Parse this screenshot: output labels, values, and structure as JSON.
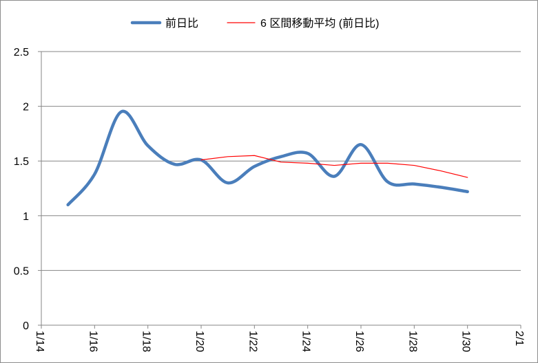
{
  "chart_data": {
    "type": "line",
    "title": "",
    "xlabel": "",
    "ylabel": "",
    "ylim": [
      0,
      2.5
    ],
    "yticks": [
      "0",
      "0.5",
      "1",
      "1.5",
      "2",
      "2.5"
    ],
    "xticks": [
      "1/14",
      "1/16",
      "1/18",
      "1/20",
      "1/22",
      "1/24",
      "1/26",
      "1/28",
      "1/30",
      "2/1"
    ],
    "grid": true,
    "legend_position": "top",
    "x": [
      "1/15",
      "1/16",
      "1/17",
      "1/18",
      "1/19",
      "1/20",
      "1/21",
      "1/22",
      "1/23",
      "1/24",
      "1/25",
      "1/26",
      "1/27",
      "1/28",
      "1/29",
      "1/30"
    ],
    "series": [
      {
        "name": "前日比",
        "color": "#4a7ebb",
        "smooth": true,
        "values": [
          1.1,
          1.38,
          1.95,
          1.64,
          1.47,
          1.51,
          1.3,
          1.45,
          1.54,
          1.57,
          1.36,
          1.65,
          1.31,
          1.29,
          1.26,
          1.22
        ]
      },
      {
        "name": "6 区間移動平均 (前日比)",
        "color": "#ff0000",
        "smooth": false,
        "values": [
          null,
          null,
          null,
          null,
          null,
          1.51,
          1.54,
          1.55,
          1.49,
          1.48,
          1.46,
          1.48,
          1.48,
          1.46,
          1.41,
          1.35
        ]
      }
    ]
  }
}
